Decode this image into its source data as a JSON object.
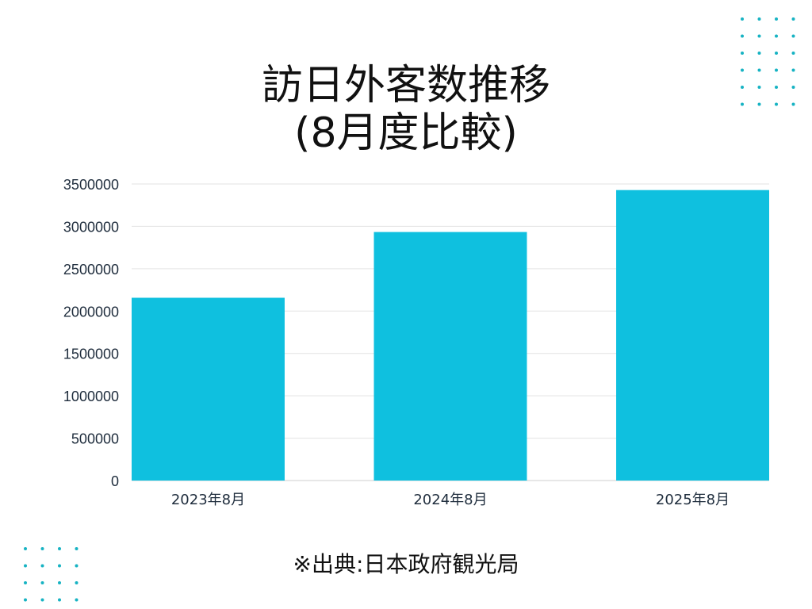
{
  "title_line1": "訪日外客数推移",
  "title_line2": "(8月度比較)",
  "source": "※出典:日本政府観光局",
  "colors": {
    "bar": "#0fc0df",
    "grid": "#e3e3e3",
    "dots": "#17b3c3"
  },
  "chart_data": {
    "type": "bar",
    "categories": [
      "2023年8月",
      "2024年8月",
      "2025年8月"
    ],
    "values": [
      2157000,
      2933000,
      3428000
    ],
    "ylim": [
      0,
      3500000
    ],
    "yticks": [
      0,
      500000,
      1000000,
      1500000,
      2000000,
      2500000,
      3000000,
      3500000
    ],
    "grid": true
  }
}
